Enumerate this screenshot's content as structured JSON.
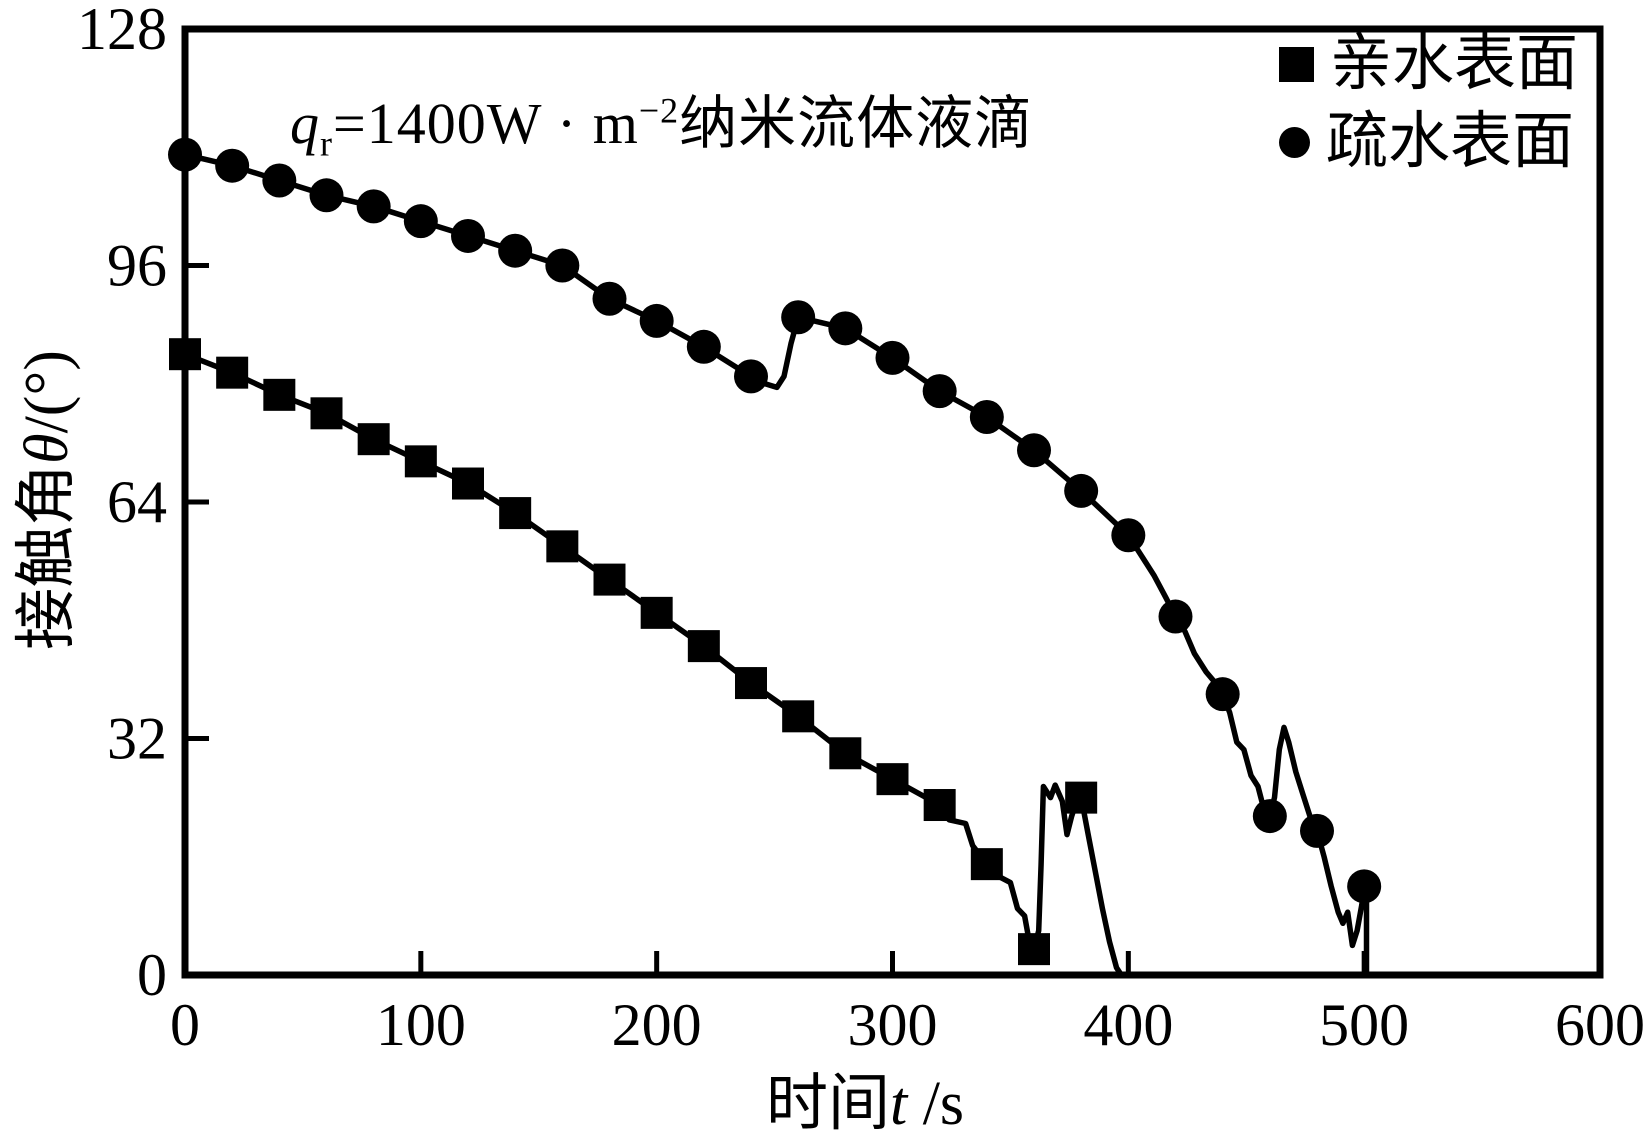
{
  "chart_data": {
    "type": "line",
    "title": "",
    "annotation_text": "qr=1400W · m−2纳米流体液滴",
    "annotation_parts": [
      {
        "t": "q",
        "style": "italic"
      },
      {
        "t": "r",
        "style": "sub"
      },
      {
        "t": "=1400W · m",
        "style": ""
      },
      {
        "t": "−2",
        "style": "sup"
      },
      {
        "t": "纳米流体液滴",
        "style": ""
      }
    ],
    "xlabel_text": "时间t /s",
    "xlabel_parts": [
      {
        "t": "时间",
        "style": ""
      },
      {
        "t": "t",
        "style": "italic"
      },
      {
        "t": " /s",
        "style": ""
      }
    ],
    "ylabel_text": "接触角θ/(°)",
    "ylabel_parts": [
      {
        "t": "接触角",
        "style": ""
      },
      {
        "t": "θ",
        "style": "italic"
      },
      {
        "t": "/(°)",
        "style": ""
      }
    ],
    "xlim": [
      0,
      600
    ],
    "ylim": [
      0,
      128
    ],
    "xticks": [
      0,
      100,
      200,
      300,
      400,
      500,
      600
    ],
    "yticks": [
      0,
      32,
      64,
      96,
      128
    ],
    "grid": false,
    "legend_position": "top-right",
    "colors": {
      "foreground": "#000000",
      "background": "#ffffff"
    },
    "series": [
      {
        "name": "亲水表面",
        "marker": "square",
        "points": [
          [
            0,
            84
          ],
          [
            20,
            81.5
          ],
          [
            40,
            78.5
          ],
          [
            60,
            76
          ],
          [
            80,
            72.5
          ],
          [
            100,
            69.5
          ],
          [
            120,
            66.5
          ],
          [
            140,
            62.5
          ],
          [
            160,
            58
          ],
          [
            180,
            53.5
          ],
          [
            200,
            49
          ],
          [
            220,
            44.5
          ],
          [
            240,
            39.5
          ],
          [
            260,
            35
          ],
          [
            280,
            30
          ],
          [
            300,
            26.5
          ],
          [
            320,
            23
          ],
          [
            340,
            15
          ],
          [
            360,
            3.5
          ],
          [
            380,
            24
          ]
        ],
        "line_path": [
          [
            0,
            84
          ],
          [
            20,
            81.5
          ],
          [
            40,
            78.5
          ],
          [
            60,
            76
          ],
          [
            80,
            72.5
          ],
          [
            100,
            69.5
          ],
          [
            120,
            66.5
          ],
          [
            140,
            62.5
          ],
          [
            160,
            58
          ],
          [
            180,
            53.5
          ],
          [
            200,
            49
          ],
          [
            220,
            44.5
          ],
          [
            240,
            39.5
          ],
          [
            260,
            35
          ],
          [
            280,
            30
          ],
          [
            300,
            26.5
          ],
          [
            320,
            23
          ],
          [
            324,
            21
          ],
          [
            331,
            20.5
          ],
          [
            334,
            17.5
          ],
          [
            340,
            15
          ],
          [
            344,
            13.5
          ],
          [
            350,
            12.5
          ],
          [
            353,
            9
          ],
          [
            356,
            8
          ],
          [
            358,
            4.5
          ],
          [
            360,
            3.5
          ],
          [
            362,
            6
          ],
          [
            363,
            15
          ],
          [
            364,
            25.5
          ],
          [
            367,
            24
          ],
          [
            369,
            25.7
          ],
          [
            372,
            23.5
          ],
          [
            374,
            19
          ],
          [
            376,
            21.5
          ],
          [
            378,
            23.5
          ],
          [
            380,
            24
          ],
          [
            383,
            19
          ],
          [
            386,
            14
          ],
          [
            389,
            9
          ],
          [
            392,
            4.5
          ],
          [
            395,
            1
          ],
          [
            397,
            0
          ]
        ]
      },
      {
        "name": "疏水表面",
        "marker": "circle",
        "points": [
          [
            0,
            111
          ],
          [
            20,
            109.5
          ],
          [
            40,
            107.5
          ],
          [
            60,
            105.5
          ],
          [
            80,
            104
          ],
          [
            100,
            102
          ],
          [
            120,
            100
          ],
          [
            140,
            98
          ],
          [
            160,
            96
          ],
          [
            180,
            91.5
          ],
          [
            200,
            88.5
          ],
          [
            220,
            85
          ],
          [
            240,
            81
          ],
          [
            260,
            89
          ],
          [
            280,
            87.5
          ],
          [
            300,
            83.5
          ],
          [
            320,
            79
          ],
          [
            340,
            75.5
          ],
          [
            360,
            71
          ],
          [
            380,
            65.5
          ],
          [
            400,
            59.5
          ],
          [
            420,
            48.5
          ],
          [
            440,
            38
          ],
          [
            460,
            21.5
          ],
          [
            480,
            19.5
          ],
          [
            500,
            12
          ]
        ],
        "line_path": [
          [
            0,
            111
          ],
          [
            20,
            109.5
          ],
          [
            40,
            107.5
          ],
          [
            60,
            105.5
          ],
          [
            80,
            104
          ],
          [
            100,
            102
          ],
          [
            120,
            100
          ],
          [
            140,
            98
          ],
          [
            160,
            96
          ],
          [
            180,
            91.5
          ],
          [
            200,
            88.5
          ],
          [
            220,
            85
          ],
          [
            240,
            81
          ],
          [
            246,
            80
          ],
          [
            251,
            79.5
          ],
          [
            254,
            81
          ],
          [
            257,
            85.5
          ],
          [
            260,
            89
          ],
          [
            280,
            87.5
          ],
          [
            300,
            83.5
          ],
          [
            320,
            79
          ],
          [
            340,
            75.5
          ],
          [
            360,
            71
          ],
          [
            380,
            65.5
          ],
          [
            400,
            59.5
          ],
          [
            406,
            56.5
          ],
          [
            411,
            54
          ],
          [
            416,
            51
          ],
          [
            420,
            48.5
          ],
          [
            424,
            46.5
          ],
          [
            428,
            43.5
          ],
          [
            433,
            41
          ],
          [
            437,
            39.5
          ],
          [
            440,
            38
          ],
          [
            443,
            35.5
          ],
          [
            446,
            31.5
          ],
          [
            449,
            30.5
          ],
          [
            452,
            27
          ],
          [
            455,
            25.5
          ],
          [
            457,
            23
          ],
          [
            460,
            21.5
          ],
          [
            462,
            24
          ],
          [
            464,
            30.5
          ],
          [
            466,
            33.5
          ],
          [
            468,
            31.5
          ],
          [
            471,
            27.5
          ],
          [
            474,
            24.5
          ],
          [
            477,
            21.5
          ],
          [
            480,
            19.5
          ],
          [
            483,
            16
          ],
          [
            486,
            12
          ],
          [
            489,
            8.5
          ],
          [
            491,
            7
          ],
          [
            493,
            8.5
          ],
          [
            495,
            4
          ],
          [
            497,
            6
          ],
          [
            499,
            9.5
          ],
          [
            500,
            12
          ],
          [
            501,
            10
          ],
          [
            501,
            0
          ]
        ]
      }
    ]
  }
}
